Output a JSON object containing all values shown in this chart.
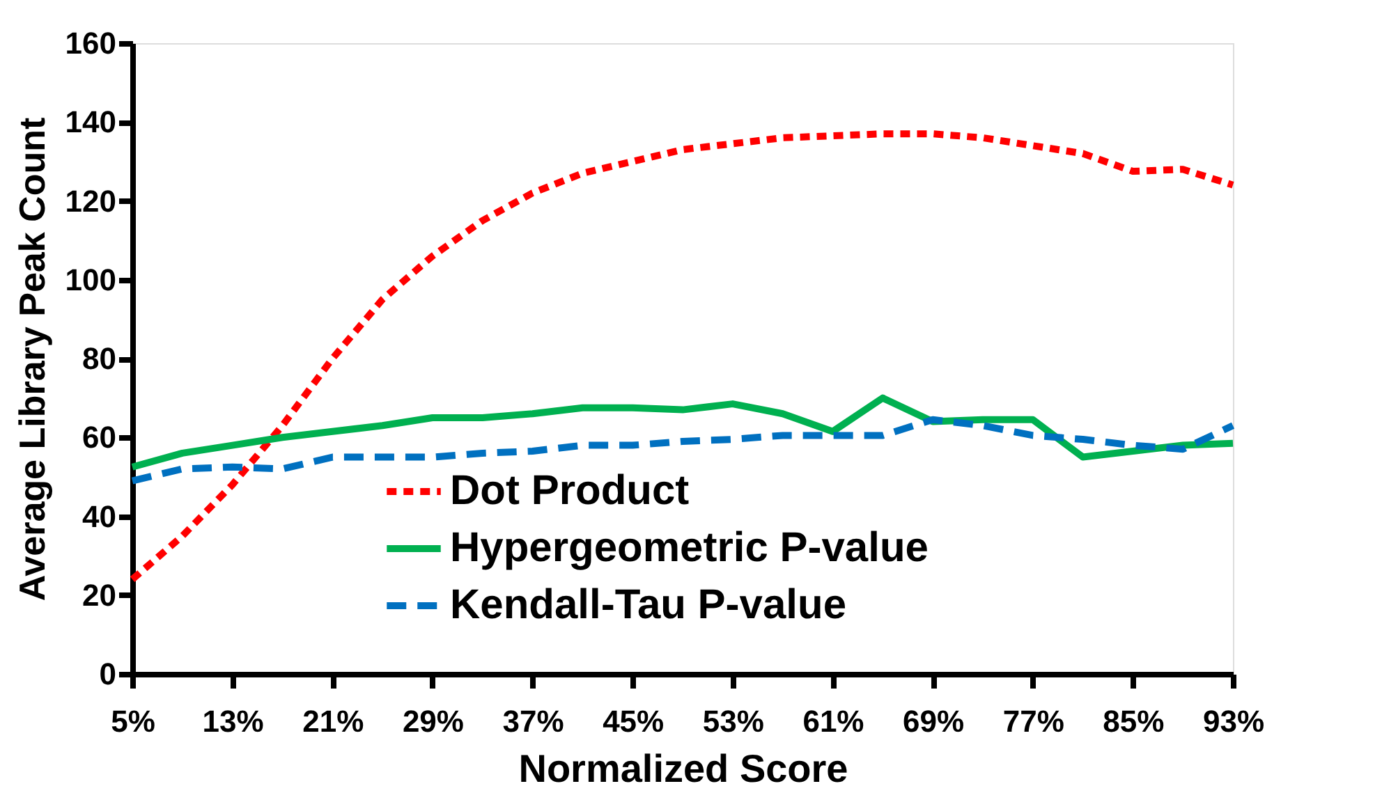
{
  "chart_data": {
    "type": "line",
    "xlabel": "Normalized Score",
    "ylabel": "Average Library Peak Count",
    "categories": [
      "5%",
      null,
      "13%",
      null,
      "21%",
      null,
      "29%",
      null,
      "37%",
      null,
      "45%",
      null,
      "53%",
      null,
      "61%",
      null,
      "69%",
      null,
      "77%",
      null,
      "85%",
      null,
      "93%"
    ],
    "series": [
      {
        "name": "Dot Product",
        "color": "#ff0000",
        "line_style": "dotted",
        "values": [
          24,
          35,
          48,
          63,
          80,
          95,
          106,
          115,
          122,
          127,
          130,
          133,
          134.5,
          136,
          136.5,
          137,
          137,
          136,
          134,
          132,
          127.5,
          128,
          124
        ]
      },
      {
        "name": "Hypergeometric P-value",
        "color": "#00b050",
        "line_style": "solid",
        "values": [
          52.5,
          56,
          58,
          60,
          61.5,
          63,
          65,
          65,
          66,
          67.5,
          67.5,
          67,
          68.5,
          66,
          61.5,
          70,
          64,
          64.5,
          64.5,
          55,
          56.5,
          58,
          58.5
        ]
      },
      {
        "name": "Kendall-Tau P-value",
        "color": "#0070c0",
        "line_style": "dashed",
        "values": [
          49,
          52,
          52.5,
          52,
          55,
          55,
          55,
          56,
          56.5,
          58,
          58,
          59,
          59.5,
          60.5,
          60.5,
          60.5,
          64.5,
          63,
          60.5,
          59.5,
          58,
          57,
          63
        ]
      }
    ],
    "ylim": [
      0,
      160
    ],
    "yticks": [
      0,
      20,
      40,
      60,
      80,
      100,
      120,
      140,
      160
    ],
    "grid": false,
    "legend": "bottom",
    "marker": "none"
  }
}
